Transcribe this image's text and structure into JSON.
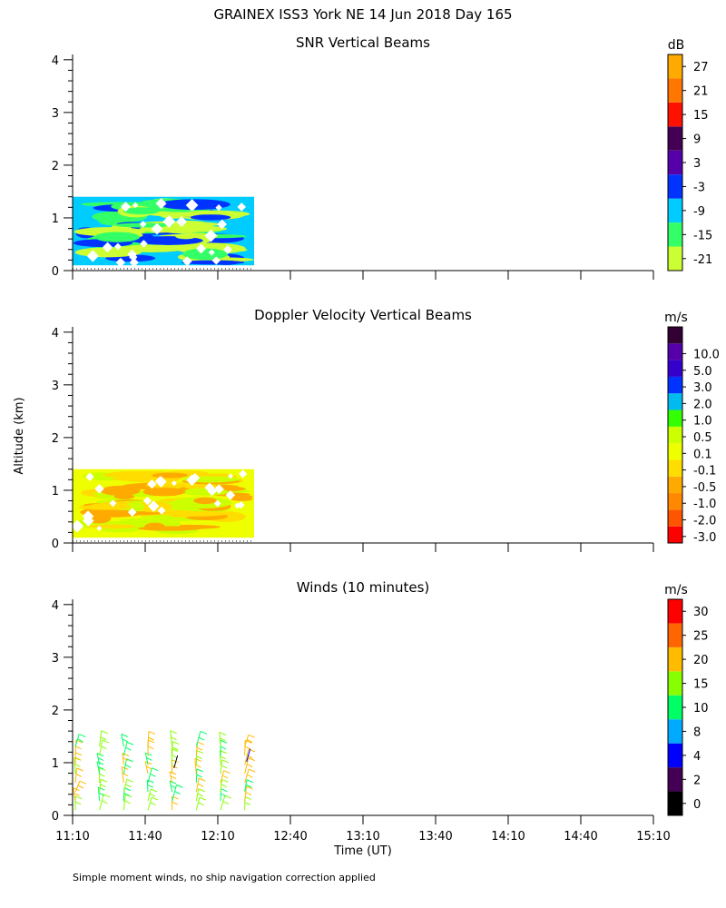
{
  "page": {
    "title": "GRAINEX ISS3 York NE  14 Jun 2018 Day 165",
    "y_axis_label": "Altitude (km)",
    "x_axis_label": "Time (UT)",
    "footnote": "Simple moment winds, no ship navigation correction applied"
  },
  "chart_data": [
    {
      "type": "heatmap",
      "title": "SNR Vertical Beams",
      "unit": "dB",
      "x_ticks": [
        "11:10",
        "11:40",
        "12:10",
        "12:40",
        "13:10",
        "13:40",
        "14:10",
        "14:40",
        "15:10"
      ],
      "y_ticks": [
        "0",
        "1",
        "2",
        "3",
        "4"
      ],
      "ylim": [
        0,
        4.1
      ],
      "data_extent": {
        "time_start": "11:10",
        "time_end": "12:25",
        "altitude_km": [
          0.1,
          1.4
        ]
      },
      "colorbar": {
        "labels": [
          "-21",
          "-15",
          "-9",
          "-3",
          "3",
          "9",
          "15",
          "21",
          "27"
        ],
        "colors": [
          "#ccff33",
          "#33ff66",
          "#00ccff",
          "#0033ff",
          "#5500aa",
          "#440055",
          "#ff1100",
          "#ff7700",
          "#ffaa00"
        ]
      },
      "field_colors": [
        "#00ccff",
        "#33ff66",
        "#0033ff",
        "#ccff33"
      ]
    },
    {
      "type": "heatmap",
      "title": "Doppler Velocity Vertical Beams",
      "unit": "m/s",
      "x_ticks": [
        "11:10",
        "11:40",
        "12:10",
        "12:40",
        "13:10",
        "13:40",
        "14:10",
        "14:40",
        "15:10"
      ],
      "y_ticks": [
        "0",
        "1",
        "2",
        "3",
        "4"
      ],
      "ylim": [
        0,
        4.1
      ],
      "data_extent": {
        "time_start": "11:10",
        "time_end": "12:25",
        "altitude_km": [
          0.1,
          1.4
        ]
      },
      "colorbar": {
        "labels": [
          "-3.0",
          "-2.0",
          "-1.0",
          "-0.5",
          "-0.1",
          "0.1",
          "0.5",
          "1.0",
          "2.0",
          "3.0",
          "5.0",
          "10.0"
        ],
        "colors": [
          "#ff0000",
          "#ff5500",
          "#ff8800",
          "#ffaa00",
          "#ffdd00",
          "#eeff00",
          "#ccff00",
          "#33ff00",
          "#00bbee",
          "#0033ff",
          "#3300cc",
          "#5500aa",
          "#330033"
        ]
      },
      "field_colors": [
        "#eeff00",
        "#ffaa00",
        "#ccff00",
        "#ffdd00"
      ]
    },
    {
      "type": "scatter",
      "title": "Winds (10 minutes)",
      "unit": "m/s",
      "x_ticks": [
        "11:10",
        "11:40",
        "12:10",
        "12:40",
        "13:10",
        "13:40",
        "14:10",
        "14:40",
        "15:10"
      ],
      "y_ticks": [
        "0",
        "1",
        "2",
        "3",
        "4"
      ],
      "ylim": [
        0,
        4.1
      ],
      "data_extent": {
        "time_start": "11:10",
        "time_end": "12:25",
        "altitude_km": [
          0.1,
          1.35
        ]
      },
      "colorbar": {
        "labels": [
          "0",
          "2",
          "4",
          "8",
          "10",
          "15",
          "20",
          "25",
          "30"
        ],
        "colors": [
          "#000000",
          "#440055",
          "#0000ff",
          "#00aaff",
          "#00ff66",
          "#88ff00",
          "#ffbb00",
          "#ff6600",
          "#ff0000"
        ]
      },
      "barb_times": [
        "11:10",
        "11:20",
        "11:30",
        "11:40",
        "11:50",
        "12:00",
        "12:10",
        "12:20"
      ],
      "barb_colors": [
        "#88ff00",
        "#00ff66",
        "#ffbb00",
        "#00aaff",
        "#ff6600",
        "#0000ff",
        "#000000"
      ]
    }
  ]
}
